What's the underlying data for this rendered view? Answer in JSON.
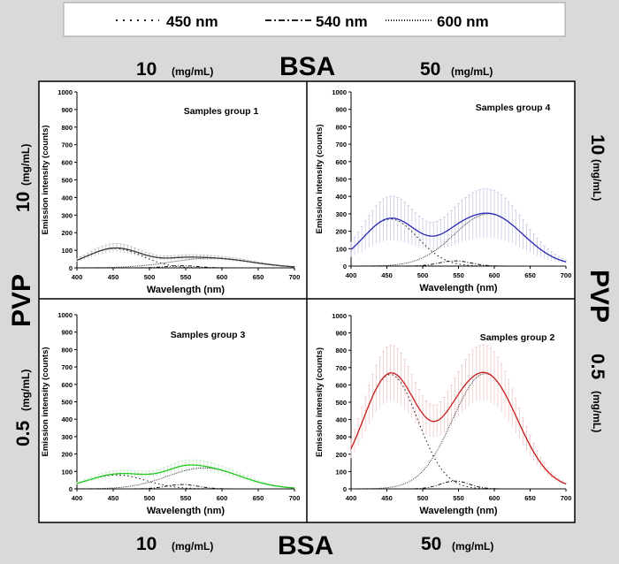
{
  "legend": {
    "items": [
      {
        "label": "450 nm",
        "dash": "2 6"
      },
      {
        "label": "540 nm",
        "dash": "7 3 2 3"
      },
      {
        "label": "600 nm",
        "dash": "1 2"
      }
    ]
  },
  "labels": {
    "bsa": "BSA",
    "pvp": "PVP",
    "top_left_conc": "10",
    "top_right_conc": "50",
    "bottom_left_conc": "10",
    "bottom_right_conc": "50",
    "unit": "(mg/mL)",
    "right_top_conc": "10",
    "right_bottom_conc": "0.5",
    "left_top_conc": "10",
    "left_bottom_conc": "0.5"
  },
  "chart_data": [
    {
      "type": "line",
      "title": "Samples group 1",
      "xlabel": "Wavelength (nm)",
      "ylabel": "Emission intensity (counts)",
      "xlim": [
        400,
        700
      ],
      "ylim": [
        0,
        1000
      ],
      "xticks": [
        400,
        450,
        500,
        550,
        600,
        650,
        700
      ],
      "yticks": [
        0,
        100,
        200,
        300,
        400,
        500,
        600,
        700,
        800,
        900,
        1000
      ],
      "color": "#3a3a3a",
      "error_bar_color": "#bfbfbf",
      "components": [
        {
          "name": "450 nm",
          "center": 452,
          "amplitude": 110,
          "width": 38
        },
        {
          "name": "540 nm",
          "center": 545,
          "amplitude": 12,
          "width": 22
        },
        {
          "name": "600 nm",
          "center": 585,
          "amplitude": 55,
          "width": 55
        }
      ],
      "error": 25
    },
    {
      "type": "line",
      "title": "Samples group 4",
      "xlabel": "Wavelength (nm)",
      "ylabel": "Emission intensity (counts)",
      "xlim": [
        400,
        700
      ],
      "ylim": [
        0,
        1000
      ],
      "xticks": [
        400,
        450,
        500,
        550,
        600,
        650,
        700
      ],
      "yticks": [
        0,
        100,
        200,
        300,
        400,
        500,
        600,
        700,
        800,
        900,
        1000
      ],
      "color": "#2a2ab8",
      "error_bar_color": "#c8c8e8",
      "components": [
        {
          "name": "450 nm",
          "center": 455,
          "amplitude": 270,
          "width": 38
        },
        {
          "name": "540 nm",
          "center": 545,
          "amplitude": 30,
          "width": 22
        },
        {
          "name": "600 nm",
          "center": 592,
          "amplitude": 300,
          "width": 48
        }
      ],
      "error": 140
    },
    {
      "type": "line",
      "title": "Samples group 3",
      "xlabel": "Wavelength (nm)",
      "ylabel": "Emission intensity (counts)",
      "xlim": [
        400,
        700
      ],
      "ylim": [
        0,
        1000
      ],
      "xticks": [
        400,
        450,
        500,
        550,
        600,
        650,
        700
      ],
      "yticks": [
        0,
        100,
        200,
        300,
        400,
        500,
        600,
        700,
        800,
        900,
        1000
      ],
      "color": "#1fcc1f",
      "error_bar_color": "#c8e8c8",
      "components": [
        {
          "name": "450 nm",
          "center": 455,
          "amplitude": 80,
          "width": 40
        },
        {
          "name": "540 nm",
          "center": 545,
          "amplitude": 25,
          "width": 22
        },
        {
          "name": "600 nm",
          "center": 575,
          "amplitude": 120,
          "width": 50
        }
      ],
      "error": 30
    },
    {
      "type": "line",
      "title": "Samples group 2",
      "xlabel": "Wavelength (nm)",
      "ylabel": "Emission intensity (counts)",
      "xlim": [
        400,
        700
      ],
      "ylim": [
        0,
        1000
      ],
      "xticks": [
        400,
        450,
        500,
        550,
        600,
        650,
        700
      ],
      "yticks": [
        0,
        100,
        200,
        300,
        400,
        500,
        600,
        700,
        800,
        900,
        1000
      ],
      "color": "#cc1c1c",
      "error_bar_color": "#f0c8c8",
      "components": [
        {
          "name": "450 nm",
          "center": 455,
          "amplitude": 660,
          "width": 38
        },
        {
          "name": "540 nm",
          "center": 545,
          "amplitude": 45,
          "width": 20
        },
        {
          "name": "600 nm",
          "center": 587,
          "amplitude": 665,
          "width": 45
        }
      ],
      "error": 160
    }
  ]
}
